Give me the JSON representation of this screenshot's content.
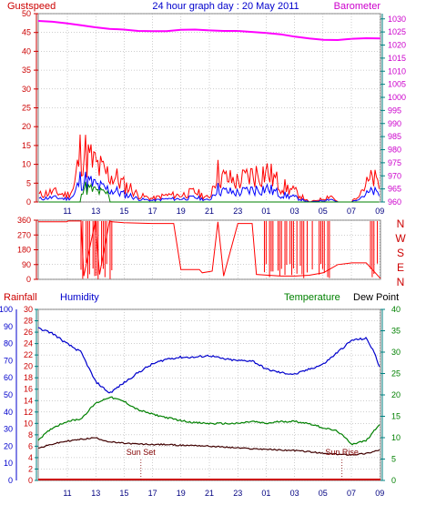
{
  "header": {
    "title": "24 hour graph day : 20 May 2011",
    "left_label": "Gustspeed",
    "right_label": "Barometer"
  },
  "time_ticks": [
    "11",
    "13",
    "15",
    "17",
    "19",
    "21",
    "23",
    "01",
    "03",
    "05",
    "07",
    "09"
  ],
  "colors": {
    "grid": "#9e9e9e",
    "bg": "#ffffff",
    "gust": "#ff0000",
    "wind_avg": "#0000ff",
    "wind_low": "#008000",
    "baro": "#ff00ff",
    "wind_dir": "#ff0000",
    "humidity": "#0000cc",
    "temperature": "#008000",
    "dewpoint": "#400000",
    "rainfall": "#cc0000",
    "axis_left": "#cc0000",
    "axis_blue": "#0000cc",
    "axis_green": "#008000",
    "axis_magenta": "#cc00cc",
    "axis_teal": "#008080"
  },
  "chart_data": [
    {
      "type": "line",
      "name": "Gustspeed / Barometer",
      "xlabel": "",
      "ylabel_left": "Gustspeed",
      "ylabel_right": "Barometer",
      "left_ticks": [
        0,
        5,
        10,
        15,
        20,
        25,
        30,
        35,
        40,
        45,
        50
      ],
      "right_ticks": [
        960,
        965,
        970,
        975,
        980,
        985,
        990,
        995,
        1000,
        1005,
        1010,
        1015,
        1020,
        1025,
        1030
      ],
      "ylim_left": [
        0,
        50
      ],
      "ylim_right": [
        960,
        1032
      ],
      "barometer": {
        "x": [
          0,
          1,
          2,
          3,
          4,
          5,
          6,
          7,
          8,
          9,
          10,
          11,
          12,
          13,
          14,
          15,
          16,
          17,
          18,
          19,
          20,
          21,
          22,
          23,
          24
        ],
        "values": [
          1029.2,
          1028.9,
          1028.3,
          1027.6,
          1026.8,
          1026.2,
          1025.9,
          1025.4,
          1025.3,
          1025.3,
          1025.8,
          1025.9,
          1025.6,
          1025.4,
          1025.4,
          1025.0,
          1024.6,
          1024.1,
          1023.2,
          1022.5,
          1022.0,
          1021.9,
          1022.4,
          1022.6,
          1022.5
        ]
      },
      "gust_profile": {
        "x": [
          0,
          1,
          2,
          2.5,
          3,
          3.5,
          4,
          4.5,
          5,
          5.5,
          6,
          6.5,
          7,
          8,
          9,
          10,
          11,
          12,
          12.5,
          13,
          14,
          15,
          16,
          17,
          18,
          19,
          20,
          20.5,
          21,
          22,
          22.5,
          23,
          23.5,
          24
        ],
        "values": [
          2,
          3,
          2,
          4,
          16,
          13,
          11,
          9,
          8,
          7,
          5,
          4,
          2,
          1,
          2,
          2,
          3,
          1,
          9,
          7,
          6,
          8,
          9,
          5,
          3,
          0,
          1,
          2,
          0,
          0,
          3,
          5,
          7,
          4
        ]
      }
    },
    {
      "type": "line",
      "name": "Wind direction",
      "left_ticks": [
        0,
        90,
        180,
        270,
        360
      ],
      "ylim": [
        0,
        360
      ],
      "compass_labels": [
        "N",
        "W",
        "S",
        "E",
        "N"
      ],
      "profile": {
        "x": [
          0,
          2,
          2.1,
          3,
          3.2,
          4,
          4.3,
          5,
          5.2,
          6,
          8,
          9.5,
          10,
          11.3,
          11.5,
          12.2,
          12.6,
          13,
          14,
          15,
          15.3,
          17,
          18,
          19,
          20,
          21,
          22,
          23,
          24
        ],
        "values": [
          350,
          350,
          355,
          355,
          20,
          355,
          30,
          355,
          350,
          345,
          340,
          340,
          60,
          60,
          40,
          50,
          350,
          20,
          340,
          340,
          30,
          20,
          20,
          25,
          40,
          90,
          100,
          100,
          5
        ]
      }
    },
    {
      "type": "line",
      "name": "Rainfall / Humidity / Temperature / Dew Point",
      "left_label": "Rainfall",
      "humidity_label": "Humidity",
      "temperature_label": "Temperature",
      "dewpoint_label": "Dew Point",
      "rain_ticks": [
        0,
        10,
        20,
        30,
        40,
        50,
        60,
        70,
        80,
        90,
        100
      ],
      "humidity_ticks": [
        0,
        2,
        4,
        6,
        8,
        10,
        12,
        14,
        16,
        18,
        20,
        22,
        24,
        26,
        28,
        30
      ],
      "temp_ticks": [
        0,
        5,
        10,
        15,
        20,
        25,
        30,
        35,
        40
      ],
      "ylim_humidity": [
        0,
        100
      ],
      "ylim_temperature": [
        0,
        40
      ],
      "annotations": [
        "Sun Set",
        "Sun Rise"
      ],
      "humidity": {
        "x": [
          0,
          1,
          2,
          3,
          4,
          5,
          6,
          7,
          8,
          9,
          10,
          11,
          12,
          13,
          14,
          15,
          16,
          17,
          18,
          19,
          20,
          21,
          22,
          23,
          23.5,
          24
        ],
        "values": [
          89,
          86,
          80,
          75,
          58,
          51,
          57,
          63,
          68,
          71,
          72,
          72,
          73,
          71,
          70,
          70,
          65,
          63,
          62,
          65,
          68,
          75,
          82,
          83,
          76,
          65
        ]
      },
      "temperature": {
        "x": [
          0,
          1,
          2,
          3,
          4,
          5,
          6,
          7,
          8,
          9,
          10,
          11,
          12,
          13,
          14,
          15,
          16,
          17,
          18,
          19,
          20,
          21,
          22,
          23,
          24
        ],
        "values": [
          9.5,
          12.3,
          13.8,
          14.4,
          18.0,
          19.5,
          18.5,
          16.5,
          15.5,
          14.7,
          14.0,
          13.5,
          13.3,
          13.3,
          13.3,
          13.8,
          13.3,
          13.8,
          13.8,
          13.3,
          12.3,
          11.5,
          8.5,
          9.3,
          13.5
        ]
      },
      "dewpoint": {
        "x": [
          0,
          1,
          2,
          3,
          4,
          5,
          6,
          7,
          8,
          9,
          10,
          11,
          12,
          13,
          14,
          15,
          16,
          17,
          18,
          19,
          20,
          21,
          22,
          23,
          24
        ],
        "values": [
          7.5,
          8.5,
          9.2,
          9.6,
          10.0,
          9.0,
          8.7,
          8.5,
          8.4,
          8.4,
          8.2,
          8.2,
          8.0,
          7.8,
          7.6,
          7.4,
          7.3,
          7.1,
          7.0,
          6.7,
          6.3,
          6.1,
          6.0,
          6.3,
          7.2
        ]
      },
      "rainfall": {
        "x": [
          0,
          24
        ],
        "values": [
          0,
          0
        ]
      }
    }
  ]
}
